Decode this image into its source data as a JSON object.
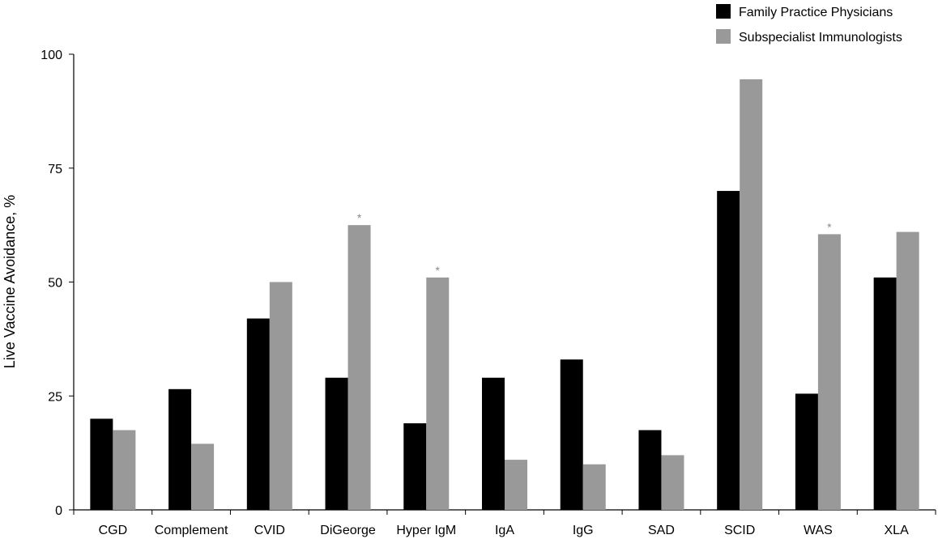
{
  "chart_data": {
    "type": "bar",
    "ylabel": "Live Vaccine Avoidance, %",
    "xlabel": "",
    "ylim": [
      0,
      100
    ],
    "yticks": [
      0,
      25,
      50,
      75,
      100
    ],
    "grid": false,
    "legend_position": "top-right",
    "categories": [
      "CGD",
      "Complement",
      "CVID",
      "DiGeorge",
      "Hyper IgM",
      "IgA",
      "IgG",
      "SAD",
      "SCID",
      "WAS",
      "XLA"
    ],
    "series": [
      {
        "name": "Family Practice Physicians",
        "color": "#000000",
        "values": [
          20,
          26.5,
          42,
          29,
          19,
          29,
          33,
          17.5,
          70,
          25.5,
          51
        ]
      },
      {
        "name": "Subspecialist Immunologists",
        "color": "#999999",
        "values": [
          17.5,
          14.5,
          50,
          62.5,
          51,
          11,
          10,
          12,
          94.5,
          60.5,
          61
        ]
      }
    ],
    "annotations": [
      {
        "category": "DiGeorge",
        "series": "Subspecialist Immunologists",
        "text": "*"
      },
      {
        "category": "Hyper IgM",
        "series": "Subspecialist Immunologists",
        "text": "*"
      },
      {
        "category": "WAS",
        "series": "Subspecialist Immunologists",
        "text": "*"
      }
    ]
  }
}
